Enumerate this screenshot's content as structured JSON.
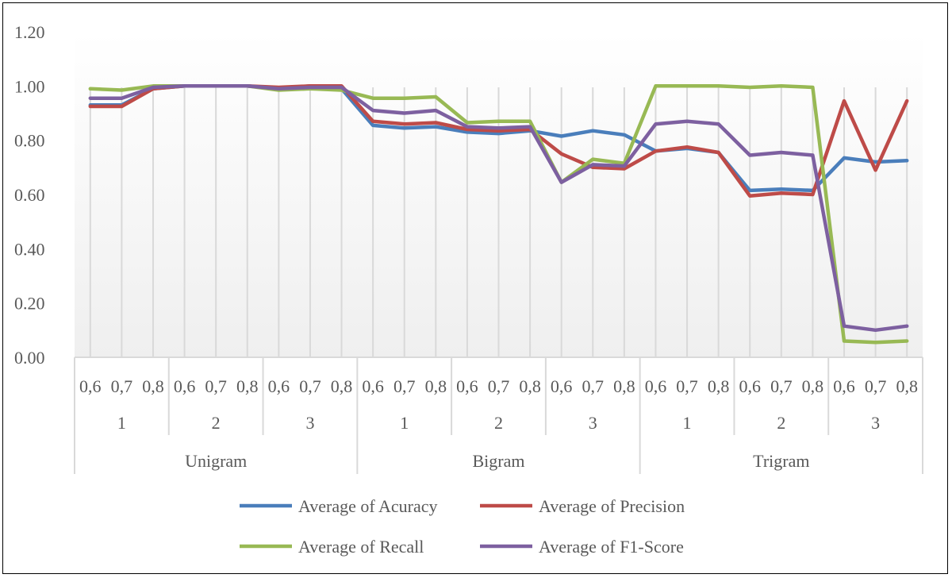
{
  "chart_data": {
    "type": "line",
    "title": "",
    "xlabel": "",
    "ylabel": "",
    "ylim": [
      0,
      1.2
    ],
    "yticks": [
      "0.00",
      "0.20",
      "0.40",
      "0.60",
      "0.80",
      "1.00",
      "1.20"
    ],
    "grid": "vertical",
    "legend_placement": "bottom",
    "x_levels": {
      "thresholds": [
        "0,6",
        "0,7",
        "0,8"
      ],
      "subgroups": [
        "1",
        "2",
        "3"
      ],
      "groups": [
        "Unigram",
        "Bigram",
        "Trigram"
      ]
    },
    "series": [
      {
        "name": "Average of Acuracy",
        "color": "#4a7ebb",
        "values": [
          0.93,
          0.93,
          0.99,
          1.0,
          1.0,
          1.0,
          0.99,
          1.0,
          0.99,
          0.855,
          0.845,
          0.85,
          0.83,
          0.825,
          0.835,
          0.815,
          0.835,
          0.82,
          0.76,
          0.77,
          0.755,
          0.615,
          0.62,
          0.615,
          0.735,
          0.72,
          0.725
        ]
      },
      {
        "name": "Average of Precision",
        "color": "#be4b48",
        "values": [
          0.925,
          0.925,
          0.99,
          1.0,
          1.0,
          1.0,
          0.995,
          1.0,
          1.0,
          0.87,
          0.86,
          0.865,
          0.84,
          0.835,
          0.84,
          0.75,
          0.7,
          0.695,
          0.76,
          0.775,
          0.755,
          0.595,
          0.605,
          0.6,
          0.945,
          0.69,
          0.945
        ]
      },
      {
        "name": "Average of Recall",
        "color": "#98b954",
        "values": [
          0.99,
          0.985,
          1.0,
          1.0,
          1.0,
          1.0,
          0.985,
          0.99,
          0.985,
          0.955,
          0.955,
          0.96,
          0.865,
          0.87,
          0.87,
          0.645,
          0.73,
          0.715,
          1.0,
          1.0,
          1.0,
          0.995,
          1.0,
          0.995,
          0.06,
          0.055,
          0.06
        ]
      },
      {
        "name": "Average of F1-Score",
        "color": "#7d60a0",
        "values": [
          0.955,
          0.955,
          0.995,
          1.0,
          1.0,
          1.0,
          0.99,
          0.995,
          0.995,
          0.91,
          0.9,
          0.91,
          0.85,
          0.845,
          0.85,
          0.645,
          0.71,
          0.705,
          0.86,
          0.87,
          0.86,
          0.745,
          0.755,
          0.745,
          0.115,
          0.1,
          0.115
        ]
      }
    ]
  }
}
